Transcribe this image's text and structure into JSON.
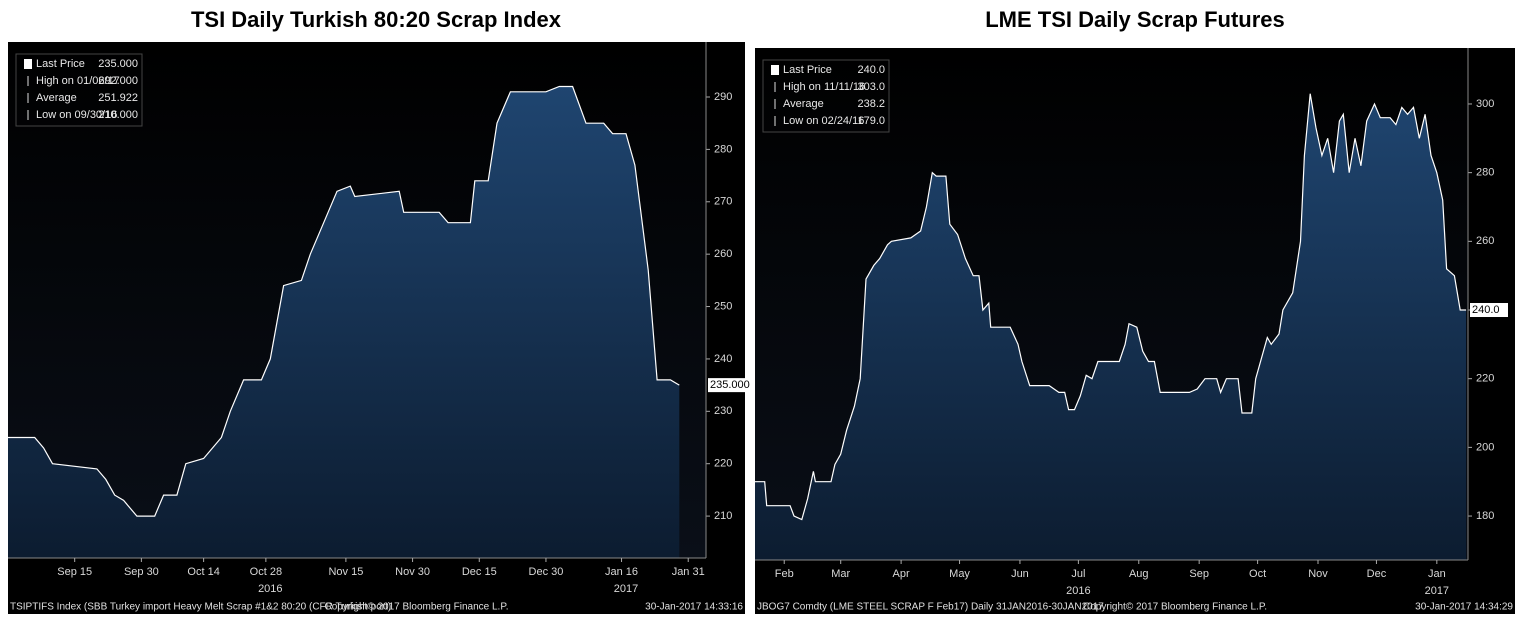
{
  "chart_data": [
    {
      "type": "area",
      "title": "TSI Daily Turkish 80:20 Scrap Index",
      "color": "#ffffff",
      "x": [
        "2016-08-31",
        "2016-09-06",
        "2016-09-08",
        "2016-09-10",
        "2016-09-20",
        "2016-09-22",
        "2016-09-24",
        "2016-09-26",
        "2016-09-27",
        "2016-09-29",
        "2016-10-03",
        "2016-10-05",
        "2016-10-08",
        "2016-10-10",
        "2016-10-14",
        "2016-10-18",
        "2016-10-20",
        "2016-10-23",
        "2016-10-27",
        "2016-10-29",
        "2016-11-01",
        "2016-11-05",
        "2016-11-07",
        "2016-11-10",
        "2016-11-13",
        "2016-11-16",
        "2016-11-17",
        "2016-11-27",
        "2016-11-28",
        "2016-12-06",
        "2016-12-08",
        "2016-12-13",
        "2016-12-14",
        "2016-12-17",
        "2016-12-19",
        "2016-12-22",
        "2016-12-30",
        "2017-01-02",
        "2017-01-05",
        "2017-01-08",
        "2017-01-12",
        "2017-01-14",
        "2017-01-17",
        "2017-01-19",
        "2017-01-22",
        "2017-01-24",
        "2017-01-27",
        "2017-01-29"
      ],
      "values": [
        225,
        225,
        223,
        220,
        219,
        217,
        214,
        213,
        212,
        210,
        210,
        214,
        214,
        220,
        221,
        225,
        230,
        236,
        236,
        240,
        254,
        255,
        260,
        266,
        272,
        273,
        271,
        272,
        268,
        268,
        266,
        266,
        274,
        274,
        285,
        291,
        291,
        292,
        292,
        285,
        285,
        283,
        283,
        277,
        257,
        236,
        236,
        235
      ],
      "xlim": [
        "2016-08-31",
        "2017-02-04"
      ],
      "ylim": [
        202,
        300.5
      ],
      "yticks": [
        210,
        220,
        230,
        240,
        250,
        260,
        270,
        280,
        290
      ],
      "xticks": [
        {
          "value": "2016-09-15",
          "label": "Sep 15"
        },
        {
          "value": "2016-09-30",
          "label": "Sep 30"
        },
        {
          "value": "2016-10-14",
          "label": "Oct 14"
        },
        {
          "value": "2016-10-28",
          "label": "Oct 28"
        },
        {
          "value": "2016-11-15",
          "label": "Nov 15"
        },
        {
          "value": "2016-11-30",
          "label": "Nov 30"
        },
        {
          "value": "2016-12-15",
          "label": "Dec 15"
        },
        {
          "value": "2016-12-30",
          "label": "Dec 30"
        },
        {
          "value": "2017-01-16",
          "label": "Jan 16"
        },
        {
          "value": "2017-01-31",
          "label": "Jan 31"
        }
      ],
      "year_labels": [
        {
          "value": "2016-10-29",
          "label": "2016"
        },
        {
          "value": "2017-01-17",
          "label": "2017"
        }
      ],
      "grid": false,
      "legend": [
        {
          "label": "Last Price",
          "value": "235.000"
        },
        {
          "label": "High on 01/06/17",
          "value": "292.000"
        },
        {
          "label": "Average",
          "value": "251.922"
        },
        {
          "label": "Low on 09/30/16",
          "value": "210.000"
        }
      ],
      "footer": [
        "TSIPTIFS Index (SBB Turkey import Heavy Melt Scrap #1&2 80:20 (CFR Turkish port)",
        "Copyright© 2017 Bloomberg Finance L.P.",
        "30-Jan-2017 14:33:16"
      ]
    },
    {
      "type": "area",
      "title": "LME TSI Daily Scrap Futures",
      "color": "#ffffff",
      "x": [
        "2016-01-31",
        "2016-02-05",
        "2016-02-06",
        "2016-02-18",
        "2016-02-20",
        "2016-02-24",
        "2016-02-27",
        "2016-03-01",
        "2016-03-02",
        "2016-03-10",
        "2016-03-12",
        "2016-03-15",
        "2016-03-18",
        "2016-03-22",
        "2016-03-25",
        "2016-03-28",
        "2016-04-01",
        "2016-04-04",
        "2016-04-08",
        "2016-04-10",
        "2016-04-20",
        "2016-04-25",
        "2016-04-28",
        "2016-05-01",
        "2016-05-03",
        "2016-05-08",
        "2016-05-10",
        "2016-05-14",
        "2016-05-18",
        "2016-05-22",
        "2016-05-25",
        "2016-05-27",
        "2016-05-30",
        "2016-05-31",
        "2016-06-10",
        "2016-06-14",
        "2016-06-16",
        "2016-06-20",
        "2016-06-30",
        "2016-07-05",
        "2016-07-08",
        "2016-07-10",
        "2016-07-13",
        "2016-07-16",
        "2016-07-19",
        "2016-07-22",
        "2016-07-25",
        "2016-08-05",
        "2016-08-08",
        "2016-08-10",
        "2016-08-14",
        "2016-08-17",
        "2016-08-20",
        "2016-08-23",
        "2016-08-26",
        "2016-09-10",
        "2016-09-14",
        "2016-09-18",
        "2016-09-24",
        "2016-09-26",
        "2016-09-29",
        "2016-10-05",
        "2016-10-07",
        "2016-10-12",
        "2016-10-14",
        "2016-10-17",
        "2016-10-20",
        "2016-10-22",
        "2016-10-26",
        "2016-10-28",
        "2016-11-02",
        "2016-11-06",
        "2016-11-08",
        "2016-11-11",
        "2016-11-14",
        "2016-11-17",
        "2016-11-20",
        "2016-11-23",
        "2016-11-26",
        "2016-11-28",
        "2016-12-01",
        "2016-12-04",
        "2016-12-07",
        "2016-12-10",
        "2016-12-14",
        "2016-12-17",
        "2016-12-22",
        "2016-12-25",
        "2016-12-28",
        "2016-12-31",
        "2017-01-03",
        "2017-01-06",
        "2017-01-09",
        "2017-01-12",
        "2017-01-15",
        "2017-01-18",
        "2017-01-20",
        "2017-01-24",
        "2017-01-27",
        "2017-01-30"
      ],
      "values": [
        190,
        190,
        183,
        183,
        180,
        179,
        185,
        193,
        190,
        190,
        195,
        198,
        205,
        212,
        220,
        249,
        253,
        255,
        259,
        260,
        261,
        263,
        270,
        280,
        279,
        279,
        265,
        262,
        255,
        250,
        250,
        240,
        242,
        235,
        235,
        230,
        225,
        218,
        218,
        216,
        216,
        211,
        211,
        215,
        221,
        220,
        225,
        225,
        230,
        236,
        235,
        228,
        225,
        225,
        216,
        216,
        217,
        220,
        220,
        216,
        220,
        220,
        210,
        210,
        220,
        226,
        232,
        230,
        233,
        240,
        245,
        260,
        285,
        303,
        293,
        285,
        290,
        280,
        295,
        297,
        280,
        290,
        282,
        295,
        300,
        296,
        296,
        294,
        299,
        297,
        299,
        290,
        297,
        285,
        280,
        272,
        252,
        250,
        240,
        240
      ],
      "xlim": [
        "2016-01-31",
        "2017-01-31"
      ],
      "ylim": [
        167.2,
        316.3
      ],
      "yticks": [
        180,
        200,
        220,
        240,
        260,
        280,
        300
      ],
      "xticks": [
        {
          "value": "2016-02-15",
          "label": "Feb"
        },
        {
          "value": "2016-03-15",
          "label": "Mar"
        },
        {
          "value": "2016-04-15",
          "label": "Apr"
        },
        {
          "value": "2016-05-15",
          "label": "May"
        },
        {
          "value": "2016-06-15",
          "label": "Jun"
        },
        {
          "value": "2016-07-15",
          "label": "Jul"
        },
        {
          "value": "2016-08-15",
          "label": "Aug"
        },
        {
          "value": "2016-09-15",
          "label": "Sep"
        },
        {
          "value": "2016-10-15",
          "label": "Oct"
        },
        {
          "value": "2016-11-15",
          "label": "Nov"
        },
        {
          "value": "2016-12-15",
          "label": "Dec"
        },
        {
          "value": "2017-01-15",
          "label": "Jan"
        }
      ],
      "year_labels": [
        {
          "value": "2016-07-15",
          "label": "2016"
        },
        {
          "value": "2017-01-15",
          "label": "2017"
        }
      ],
      "grid": false,
      "legend": [
        {
          "label": "Last Price",
          "value": "240.0"
        },
        {
          "label": "High on 11/11/16",
          "value": "303.0"
        },
        {
          "label": "Average",
          "value": "238.2"
        },
        {
          "label": "Low on 02/24/16",
          "value": "179.0"
        }
      ],
      "footer": [
        "JBOG7 Comdty (LME STEEL SCRAP F Feb17)  Daily 31JAN2016-30JAN2017",
        "Copyright© 2017 Bloomberg Finance L.P.",
        "30-Jan-2017 14:34:29"
      ]
    }
  ]
}
